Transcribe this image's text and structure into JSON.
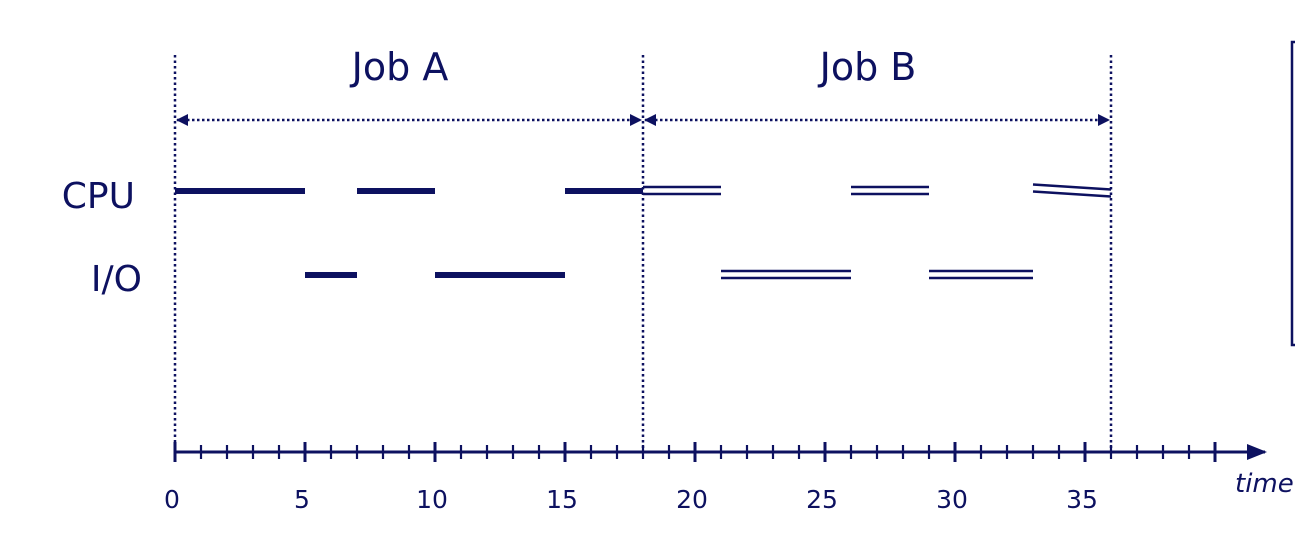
{
  "jobs": [
    {
      "label": "Job A",
      "start": 0,
      "end": 18
    },
    {
      "label": "Job B",
      "start": 18,
      "end": 36
    }
  ],
  "rows": {
    "cpu": "CPU",
    "io": "I/O"
  },
  "axis": {
    "title": "time",
    "max": 40,
    "tick_labels": [
      {
        "value": 0,
        "text": "0"
      },
      {
        "value": 5,
        "text": "5"
      },
      {
        "value": 10,
        "text": "10"
      },
      {
        "value": 15,
        "text": "15"
      },
      {
        "value": 20,
        "text": "20"
      },
      {
        "value": 25,
        "text": "25"
      },
      {
        "value": 30,
        "text": "30"
      },
      {
        "value": 35,
        "text": "35"
      }
    ]
  },
  "segments": {
    "job_a": {
      "cpu": [
        [
          0,
          5
        ],
        [
          7,
          10
        ],
        [
          15,
          18
        ]
      ],
      "io": [
        [
          5,
          7
        ],
        [
          10,
          15
        ]
      ]
    },
    "job_b": {
      "cpu": [
        [
          18,
          21
        ],
        [
          26,
          29
        ],
        [
          33,
          36
        ]
      ],
      "io": [
        [
          21,
          26
        ],
        [
          29,
          33
        ]
      ]
    }
  },
  "colors": {
    "ink": "#0d1160"
  }
}
